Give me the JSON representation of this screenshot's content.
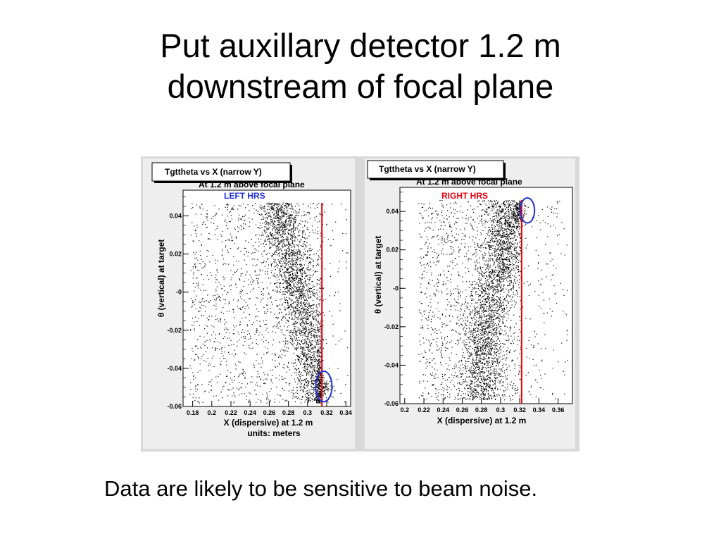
{
  "slide": {
    "title_line1": "Put auxillary detector 1.2 m",
    "title_line2": "downstream of focal plane",
    "caption": "Data are likely to be sensitive to beam noise."
  },
  "colors": {
    "point": "#000000",
    "cut_line": "#e8000b",
    "circle": "#1f2fd6",
    "label_left": "#1f2fd6",
    "label_right": "#e8000b",
    "panel_bg": "#eeeeee"
  },
  "chart_data": [
    {
      "type": "scatter",
      "title": "Tgttheta vs X (narrow Y)",
      "subtitle": "At 1.2 m  above  focal plane",
      "annotation": "LEFT  HRS",
      "xlabel": "X (dispersive) at 1.2 m",
      "xlabel2": "units: meters",
      "ylabel": "θ  (vertical)  at  target",
      "xlim": [
        0.17,
        0.345
      ],
      "ylim": [
        -0.06,
        0.0535
      ],
      "xticks": [
        0.18,
        0.2,
        0.22,
        0.24,
        0.26,
        0.28,
        0.3,
        0.32,
        0.34
      ],
      "xtick_labels": [
        "0.18",
        "0.2",
        "0.22",
        "0.24",
        "0.26",
        "0.28",
        "0.3",
        "0.32",
        "0.34"
      ],
      "yticks": [
        -0.06,
        -0.04,
        -0.02,
        0,
        0.02,
        0.04
      ],
      "ytick_labels": [
        "-0.06",
        "-0.04",
        "-0.02",
        "-0",
        "0.02",
        "0.04"
      ],
      "vertical_cut_x": 0.315,
      "highlight_ellipse": {
        "cx": 0.317,
        "cy": -0.0495,
        "rx": 0.0085,
        "ry": 0.008
      },
      "density": {
        "x_range": [
          0.177,
          0.316
        ],
        "y_range": [
          -0.058,
          0.047
        ],
        "ridge_x": [
          0.27,
          0.285,
          0.298,
          0.31
        ],
        "ridge_y": [
          0.042,
          0.01,
          -0.02,
          -0.045
        ],
        "n_uniform": 1500,
        "n_ridge": 2600,
        "n_outside": 60,
        "cluster": {
          "x": 0.317,
          "y": -0.05,
          "n": 90
        }
      }
    },
    {
      "type": "scatter",
      "title": "Tgttheta vs X (narrow Y)",
      "subtitle": "At  1.2 m   above  focal plane",
      "annotation": "RIGHT  HRS",
      "xlabel": "X  (dispersive)  at 1.2 m",
      "ylabel": "θ  (vertical)  at  target",
      "xlim": [
        0.195,
        0.375
      ],
      "ylim": [
        -0.06,
        0.0525
      ],
      "xticks": [
        0.2,
        0.22,
        0.24,
        0.26,
        0.28,
        0.3,
        0.32,
        0.34,
        0.36
      ],
      "xtick_labels": [
        "0.2",
        "0.22",
        "0.24",
        "0.26",
        "0.28",
        "0.3",
        "0.32",
        "0.34",
        "0.36"
      ],
      "yticks": [
        -0.06,
        -0.04,
        -0.02,
        0,
        0.02,
        0.04
      ],
      "ytick_labels": [
        "-0.06",
        "-0.04",
        "-0.02",
        "-0",
        "0.02",
        "0.04"
      ],
      "vertical_cut_x": 0.322,
      "highlight_ellipse": {
        "cx": 0.328,
        "cy": 0.0405,
        "rx": 0.0075,
        "ry": 0.0065
      },
      "density": {
        "x_range": [
          0.214,
          0.322
        ],
        "y_range": [
          -0.058,
          0.046
        ],
        "ridge_x": [
          0.305,
          0.3,
          0.285,
          0.28
        ],
        "ridge_y": [
          0.042,
          0.015,
          -0.015,
          -0.045
        ],
        "n_uniform": 1400,
        "n_ridge": 2500,
        "n_outside": 160,
        "cluster": {
          "x": 0.318,
          "y": 0.04,
          "n": 170
        }
      }
    }
  ]
}
